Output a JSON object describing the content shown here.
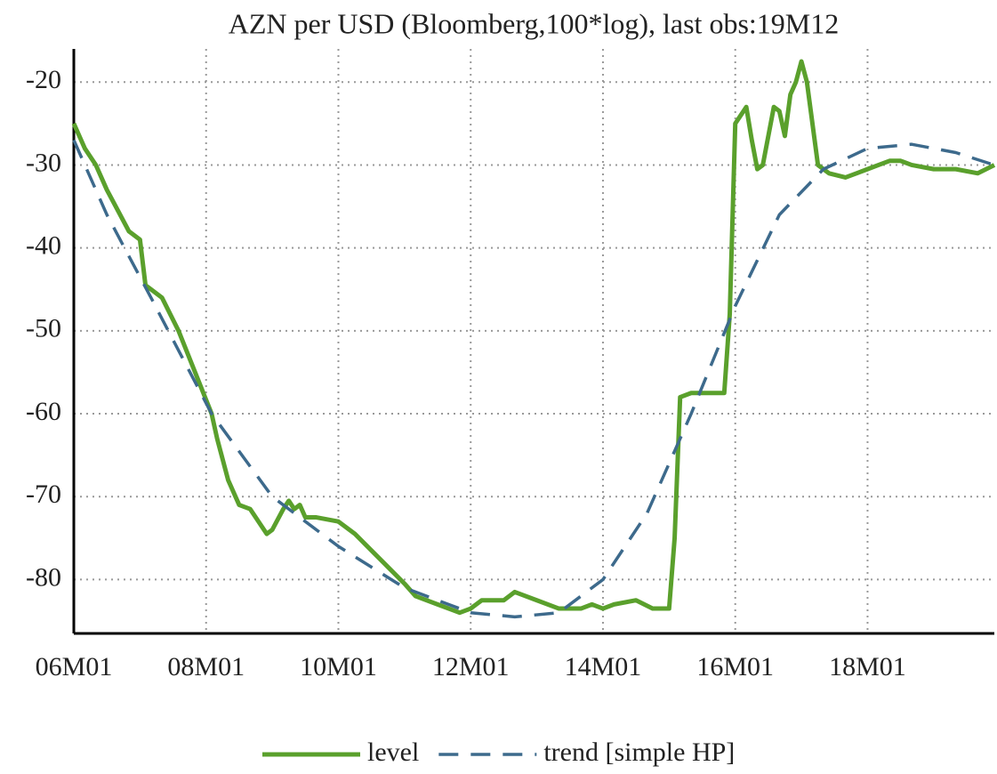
{
  "chart_data": {
    "type": "line",
    "title": "AZN per USD (Bloomberg,100*log), last obs:19M12",
    "xlim": [
      0,
      167
    ],
    "xticks": [
      {
        "value": 0,
        "label": "06M01"
      },
      {
        "value": 24,
        "label": "08M01"
      },
      {
        "value": 48,
        "label": "10M01"
      },
      {
        "value": 72,
        "label": "12M01"
      },
      {
        "value": 96,
        "label": "14M01"
      },
      {
        "value": 120,
        "label": "16M01"
      },
      {
        "value": 144,
        "label": "18M01"
      }
    ],
    "ylim": [
      -86.5,
      -16
    ],
    "yticks": [
      -80,
      -70,
      -60,
      -50,
      -40,
      -30,
      -20
    ],
    "grid": true,
    "legend": "bottom",
    "series": [
      {
        "name": "level",
        "color": "#5aa02c",
        "style": "solid",
        "x": [
          0,
          2,
          4,
          6,
          8,
          10,
          12,
          13,
          14,
          16,
          19,
          22,
          25,
          26,
          28,
          30,
          32,
          35,
          36,
          38,
          39,
          40,
          41,
          42,
          44,
          48,
          51,
          54,
          57,
          60,
          62,
          66,
          70,
          72,
          74,
          78,
          80,
          84,
          88,
          92,
          94,
          96,
          98,
          102,
          105,
          108,
          109,
          110,
          112,
          118,
          119,
          120,
          121,
          122,
          123,
          124,
          125,
          127,
          128,
          129,
          130,
          131,
          132,
          133,
          135,
          137,
          140,
          142,
          144,
          146,
          148,
          150,
          152,
          156,
          160,
          164,
          167
        ],
        "values": [
          -25,
          -28,
          -30,
          -33,
          -35.5,
          -38,
          -39,
          -44.5,
          -45,
          -46,
          -50,
          -55,
          -60,
          -63,
          -68,
          -71,
          -71.5,
          -74.5,
          -74,
          -71.5,
          -70.5,
          -71.5,
          -71,
          -72.5,
          -72.5,
          -73,
          -74.5,
          -76.5,
          -78.5,
          -80.5,
          -82,
          -83,
          -84,
          -83.5,
          -82.5,
          -82.5,
          -81.5,
          -82.5,
          -83.5,
          -83.5,
          -83,
          -83.5,
          -83,
          -82.5,
          -83.5,
          -83.5,
          -75,
          -58,
          -57.5,
          -57.5,
          -48,
          -25,
          -24,
          -23,
          -27,
          -30.5,
          -30,
          -23,
          -23.5,
          -26.5,
          -21.5,
          -20,
          -17.5,
          -20,
          -30,
          -31,
          -31.5,
          -31,
          -30.5,
          -30,
          -29.5,
          -29.5,
          -30,
          -30.5,
          -30.5,
          -31,
          -30
        ]
      },
      {
        "name": "trend [simple HP]",
        "color": "#3d6a8c",
        "style": "dashed",
        "x": [
          0,
          6,
          14,
          25,
          36,
          48,
          60,
          72,
          80,
          88,
          96,
          104,
          112,
          120,
          128,
          136,
          144,
          152,
          160,
          167
        ],
        "values": [
          -27,
          -36,
          -46,
          -60,
          -70,
          -76,
          -81,
          -84,
          -84.5,
          -84,
          -80,
          -72,
          -60,
          -47,
          -36,
          -30.5,
          -28,
          -27.5,
          -28.5,
          -30
        ]
      }
    ]
  }
}
